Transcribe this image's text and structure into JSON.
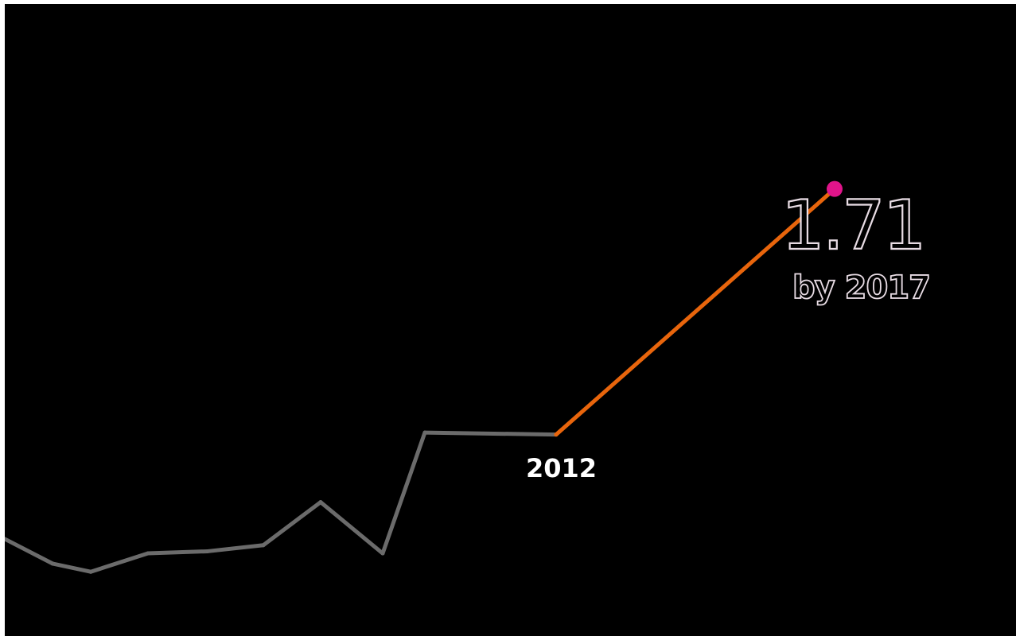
{
  "colors": {
    "background": "#000000",
    "history_line": "#6b6b6b",
    "projection_line": "#e8650c",
    "endpoint_marker": "#e0148a",
    "outline_text": "#e8dce4",
    "label_text": "#ffffff"
  },
  "chart_data": {
    "type": "line",
    "title": "",
    "xlabel": "",
    "ylabel": "",
    "grid": false,
    "series": [
      {
        "values_by_step": [
          0.0,
          -0.12,
          -0.16,
          -0.07,
          -0.06,
          -0.03,
          0.18,
          -0.07,
          0.52,
          0.51
        ],
        "style": "history"
      },
      {
        "values_by_step": [
          0.51,
          1.71
        ],
        "style": "projection"
      }
    ],
    "annotations": {
      "current_year_label": "2012",
      "projection_value": "1.71",
      "projection_label": "by 2017"
    }
  }
}
